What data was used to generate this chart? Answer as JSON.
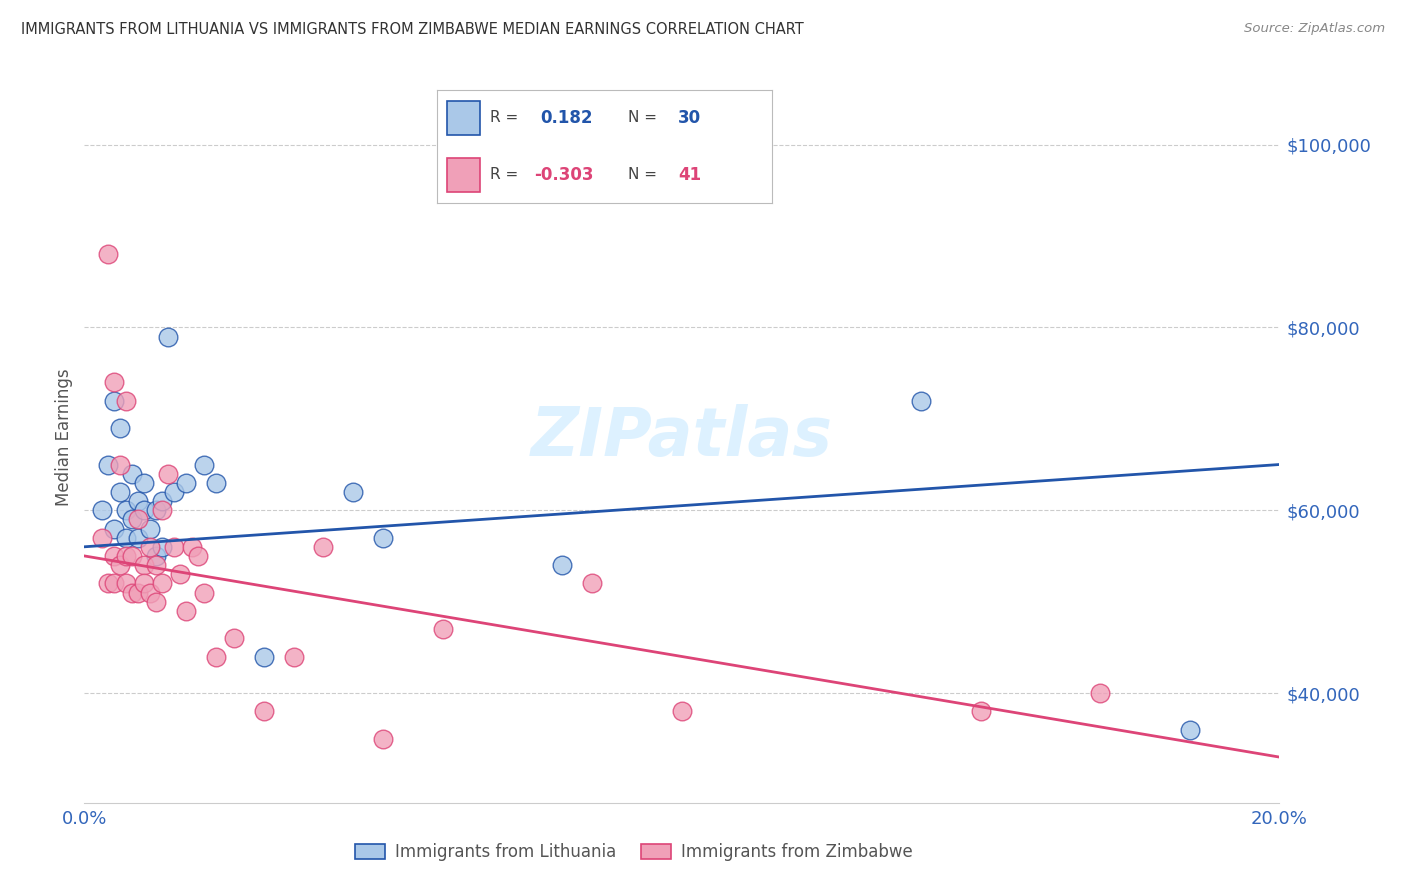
{
  "title": "IMMIGRANTS FROM LITHUANIA VS IMMIGRANTS FROM ZIMBABWE MEDIAN EARNINGS CORRELATION CHART",
  "source": "Source: ZipAtlas.com",
  "ylabel": "Median Earnings",
  "ytick_labels": [
    "$40,000",
    "$60,000",
    "$80,000",
    "$100,000"
  ],
  "ytick_values": [
    40000,
    60000,
    80000,
    100000
  ],
  "ylim": [
    28000,
    108000
  ],
  "xlim": [
    0.0,
    0.2
  ],
  "lithuania_R": 0.182,
  "lithuania_N": 30,
  "zimbabwe_R": -0.303,
  "zimbabwe_N": 41,
  "lithuania_color": "#aac8e8",
  "zimbabwe_color": "#f0a0b8",
  "lithuania_line_color": "#2255aa",
  "zimbabwe_line_color": "#dd4477",
  "legend_label_lithuania": "Immigrants from Lithuania",
  "legend_label_zimbabwe": "Immigrants from Zimbabwe",
  "watermark": "ZIPatlas",
  "lithuania_line_x0": 0.0,
  "lithuania_line_y0": 56000,
  "lithuania_line_x1": 0.2,
  "lithuania_line_y1": 65000,
  "zimbabwe_line_x0": 0.0,
  "zimbabwe_line_y0": 55000,
  "zimbabwe_line_x1": 0.2,
  "zimbabwe_line_y1": 33000,
  "lithuania_x": [
    0.003,
    0.004,
    0.005,
    0.005,
    0.006,
    0.006,
    0.007,
    0.007,
    0.008,
    0.008,
    0.009,
    0.009,
    0.01,
    0.01,
    0.011,
    0.012,
    0.012,
    0.013,
    0.013,
    0.014,
    0.015,
    0.017,
    0.02,
    0.022,
    0.03,
    0.045,
    0.05,
    0.08,
    0.14,
    0.185
  ],
  "lithuania_y": [
    60000,
    65000,
    58000,
    72000,
    62000,
    69000,
    60000,
    57000,
    64000,
    59000,
    61000,
    57000,
    60000,
    63000,
    58000,
    55000,
    60000,
    56000,
    61000,
    79000,
    62000,
    63000,
    65000,
    63000,
    44000,
    62000,
    57000,
    54000,
    72000,
    36000
  ],
  "zimbabwe_x": [
    0.003,
    0.004,
    0.004,
    0.005,
    0.005,
    0.005,
    0.006,
    0.006,
    0.007,
    0.007,
    0.007,
    0.008,
    0.008,
    0.009,
    0.009,
    0.01,
    0.01,
    0.011,
    0.011,
    0.012,
    0.012,
    0.013,
    0.013,
    0.014,
    0.015,
    0.016,
    0.017,
    0.018,
    0.019,
    0.02,
    0.022,
    0.025,
    0.03,
    0.035,
    0.04,
    0.05,
    0.06,
    0.085,
    0.1,
    0.15,
    0.17
  ],
  "zimbabwe_y": [
    57000,
    88000,
    52000,
    74000,
    55000,
    52000,
    65000,
    54000,
    72000,
    55000,
    52000,
    55000,
    51000,
    59000,
    51000,
    54000,
    52000,
    56000,
    51000,
    54000,
    50000,
    60000,
    52000,
    64000,
    56000,
    53000,
    49000,
    56000,
    55000,
    51000,
    44000,
    46000,
    38000,
    44000,
    56000,
    35000,
    47000,
    52000,
    38000,
    38000,
    40000
  ],
  "background_color": "#ffffff",
  "grid_color": "#cccccc",
  "title_color": "#333333",
  "axis_tick_color": "#3366bb"
}
